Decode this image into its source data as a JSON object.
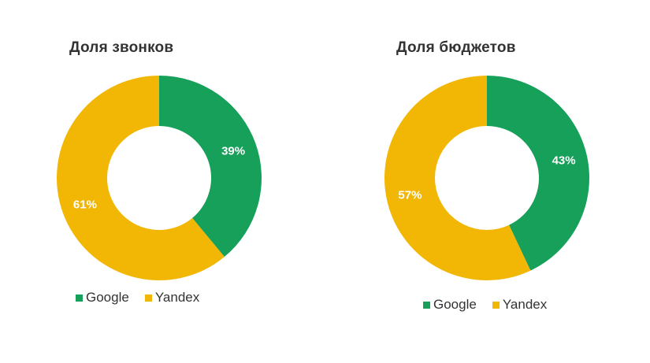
{
  "chart_data": [
    {
      "type": "pie",
      "title": "Доля звонков",
      "categories": [
        "Google",
        "Yandex"
      ],
      "values": [
        39,
        61
      ],
      "value_labels": [
        "39%",
        "61%"
      ],
      "colors": [
        "#16a05a",
        "#f2b705"
      ],
      "donut": true,
      "legend_position": "bottom"
    },
    {
      "type": "pie",
      "title": "Доля бюджетов",
      "categories": [
        "Google",
        "Yandex"
      ],
      "values": [
        43,
        57
      ],
      "value_labels": [
        "43%",
        "57%"
      ],
      "colors": [
        "#16a05a",
        "#f2b705"
      ],
      "donut": true,
      "legend_position": "bottom"
    }
  ]
}
